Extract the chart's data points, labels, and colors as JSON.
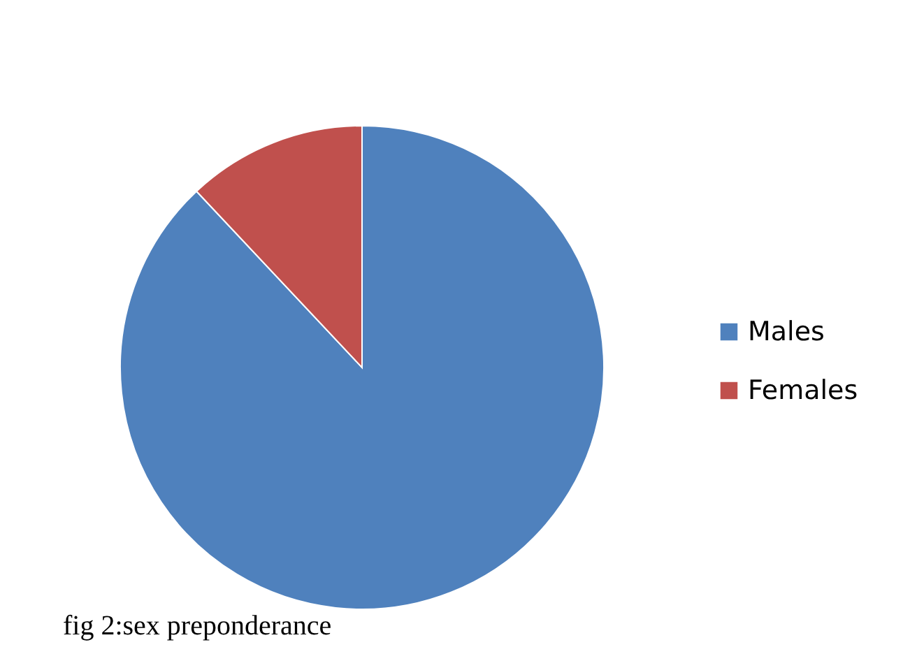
{
  "chart_data": {
    "type": "pie",
    "categories": [
      "Males",
      "Females"
    ],
    "values": [
      88,
      12
    ],
    "colors": [
      "#4f81bd",
      "#c0504d"
    ],
    "legend": "right",
    "annotations": [
      "fig 2:sex preponderance"
    ]
  }
}
